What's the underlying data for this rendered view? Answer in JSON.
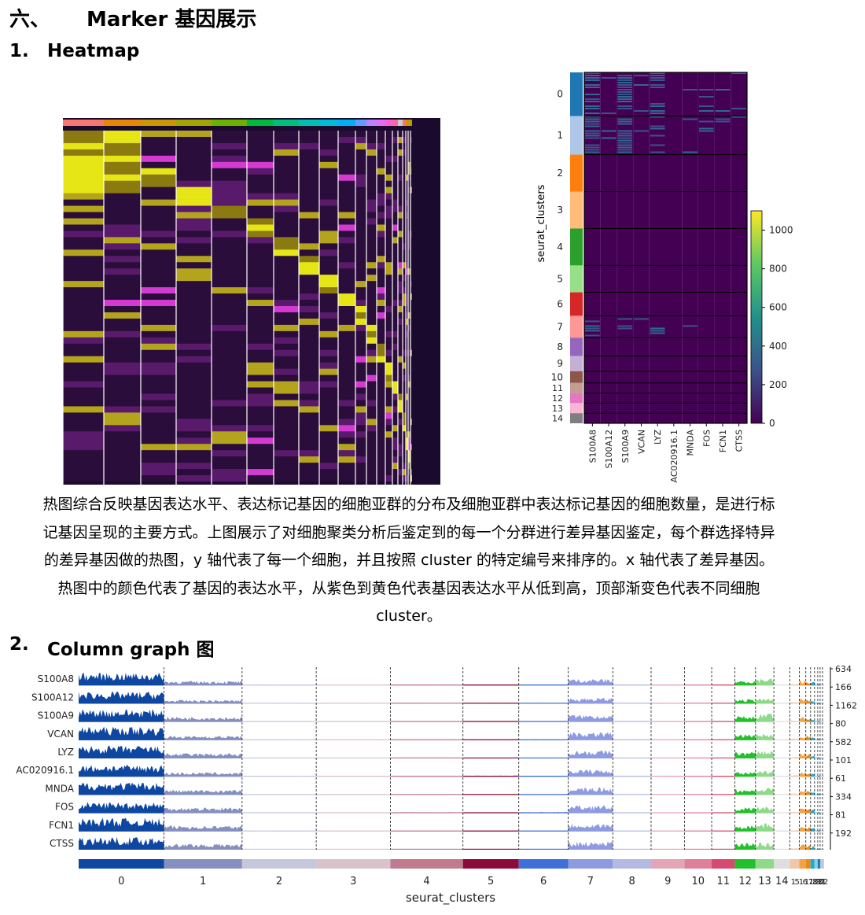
{
  "section": {
    "number": "六、",
    "title": "Marker 基因展示"
  },
  "sub1": {
    "number": "1.",
    "title": "Heatmap"
  },
  "sub2": {
    "number": "2.",
    "title": "Column graph 图"
  },
  "paragraph": [
    "热图综合反映基因表达水平、表达标记基因的细胞亚群的分布及细胞亚群中表达标记基因的细胞数量，是进行标",
    "记基因呈现的主要方式。上图展示了对细胞聚类分析后鉴定到的每一个分群进行差异基因鉴定，每个群选择特异",
    "的差异基因做的热图，y 轴代表了每一个细胞，并且按照 cluster  的特定编号来排序的。x 轴代表了差异基因。",
    "热图中的颜色代表了基因的表达水平，从紫色到黄色代表基因表达水平从低到高，顶部渐变色代表不同细胞",
    "cluster。"
  ],
  "heatmap_right": {
    "ylabel": "seurat_clusters",
    "genes": [
      "S100A8",
      "S100A12",
      "S100A9",
      "VCAN",
      "LYZ",
      "AC020916.1",
      "MNDA",
      "FOS",
      "FCN1",
      "CTSS"
    ],
    "cluster_labels": [
      "0",
      "1",
      "2",
      "3",
      "4",
      "5",
      "6",
      "7",
      "8",
      "9",
      "10",
      "11",
      "12",
      "13",
      "14"
    ],
    "colorbar_ticks": [
      "0",
      "200",
      "400",
      "600",
      "800",
      "1000"
    ],
    "colorbar_max": 1100,
    "colors": [
      "#1f77b4",
      "#aec7e8",
      "#ff7f0e",
      "#ffbb78",
      "#2ca02c",
      "#98df8a",
      "#d62728",
      "#ff9896",
      "#9467bd",
      "#c5b0d5",
      "#8c564b",
      "#c49c94",
      "#e377c2",
      "#f7b6d2",
      "#7f7f7f",
      "#c7c7c7",
      "#bcbd22",
      "#dbdb8d",
      "#17becf",
      "#9edae5"
    ]
  },
  "chart_data": [
    {
      "type": "heatmap",
      "title": "",
      "xlabel": "",
      "ylabel": "seurat_clusters",
      "x": [
        "S100A8",
        "S100A12",
        "S100A9",
        "VCAN",
        "LYZ",
        "AC020916.1",
        "MNDA",
        "FOS",
        "FCN1",
        "CTSS"
      ],
      "y": [
        "0",
        "1",
        "2",
        "3",
        "4",
        "5",
        "6",
        "7",
        "8",
        "9",
        "10",
        "11",
        "12",
        "13",
        "14"
      ],
      "colorbar": {
        "min": 0,
        "max": 1100,
        "ticks": [
          0,
          200,
          400,
          600,
          800,
          1000
        ]
      }
    },
    {
      "type": "bar",
      "title": "",
      "xlabel": "seurat_clusters",
      "genes": [
        "S100A8",
        "S100A12",
        "S100A9",
        "VCAN",
        "LYZ",
        "AC020916.1",
        "MNDA",
        "FOS",
        "FCN1",
        "CTSS"
      ],
      "gene_max": [
        "634",
        "166",
        "1162",
        "80",
        "582",
        "101",
        "61",
        "334",
        "81",
        "192"
      ],
      "clusters": [
        "0",
        "1",
        "2",
        "3",
        "4",
        "5",
        "6",
        "7",
        "8",
        "9",
        "10",
        "11",
        "12",
        "13",
        "14",
        "15",
        "16",
        "17",
        "18",
        "19",
        "20",
        "21",
        "22"
      ],
      "cluster_tick_labels": [
        "0",
        "1",
        "2",
        "3",
        "4",
        "5",
        "6",
        "7",
        "8",
        "9",
        "10",
        "11",
        "12",
        "13",
        "14",
        "15",
        "16",
        "17",
        "18",
        "19",
        "20",
        "21",
        "22"
      ],
      "cluster_colors": [
        "#0d47a1",
        "#8590c0",
        "#c5c8dc",
        "#d9c2cc",
        "#c07b8e",
        "#8b0a3a",
        "#3f6fd8",
        "#8e9be0",
        "#b5b9e2",
        "#e4a6b6",
        "#e07f98",
        "#d64a72",
        "#22c02a",
        "#8ed98a",
        "#dedede",
        "#f2c7a8",
        "#f2a34a",
        "#e88a1a",
        "#22aacc",
        "#7fd4e6",
        "#1f77b4",
        "#aec7e8",
        "#cfcfcf"
      ],
      "expression_level": {
        "S100A8": [
          0.85,
          0.3,
          0.02,
          0.02,
          0.03,
          0.02,
          0.02,
          0.45,
          0.02,
          0.02,
          0.02,
          0.02,
          0.35,
          0.5,
          0.05,
          0.1,
          0.35,
          0.3,
          0.25,
          0.1,
          0.05,
          0.05,
          0.05
        ],
        "S100A12": [
          0.8,
          0.25,
          0.02,
          0.02,
          0.02,
          0.02,
          0.02,
          0.4,
          0.02,
          0.02,
          0.02,
          0.02,
          0.3,
          0.35,
          0.05,
          0.1,
          0.3,
          0.25,
          0.2,
          0.1,
          0.05,
          0.05,
          0.05
        ],
        "S100A9": [
          0.85,
          0.35,
          0.02,
          0.02,
          0.03,
          0.02,
          0.02,
          0.5,
          0.02,
          0.02,
          0.02,
          0.02,
          0.4,
          0.55,
          0.05,
          0.1,
          0.35,
          0.3,
          0.25,
          0.1,
          0.05,
          0.05,
          0.05
        ],
        "VCAN": [
          0.9,
          0.3,
          0.02,
          0.02,
          0.03,
          0.02,
          0.03,
          0.55,
          0.02,
          0.02,
          0.02,
          0.02,
          0.4,
          0.45,
          0.05,
          0.1,
          0.3,
          0.3,
          0.2,
          0.1,
          0.05,
          0.05,
          0.05
        ],
        "LYZ": [
          0.85,
          0.35,
          0.02,
          0.03,
          0.03,
          0.03,
          0.05,
          0.55,
          0.02,
          0.03,
          0.02,
          0.02,
          0.45,
          0.55,
          0.05,
          0.1,
          0.35,
          0.3,
          0.25,
          0.1,
          0.05,
          0.05,
          0.05
        ],
        "AC020916.1": [
          0.8,
          0.3,
          0.02,
          0.03,
          0.04,
          0.08,
          0.03,
          0.5,
          0.02,
          0.02,
          0.02,
          0.02,
          0.35,
          0.45,
          0.05,
          0.1,
          0.3,
          0.25,
          0.2,
          0.1,
          0.05,
          0.05,
          0.05
        ],
        "MNDA": [
          0.85,
          0.35,
          0.02,
          0.03,
          0.04,
          0.03,
          0.04,
          0.5,
          0.02,
          0.02,
          0.02,
          0.02,
          0.4,
          0.5,
          0.05,
          0.1,
          0.35,
          0.3,
          0.25,
          0.1,
          0.05,
          0.05,
          0.05
        ],
        "FOS": [
          0.75,
          0.4,
          0.05,
          0.05,
          0.08,
          0.06,
          0.08,
          0.55,
          0.05,
          0.05,
          0.04,
          0.04,
          0.4,
          0.45,
          0.05,
          0.1,
          0.35,
          0.3,
          0.25,
          0.1,
          0.05,
          0.05,
          0.05
        ],
        "FCN1": [
          0.9,
          0.4,
          0.02,
          0.03,
          0.04,
          0.05,
          0.04,
          0.55,
          0.02,
          0.02,
          0.02,
          0.02,
          0.45,
          0.55,
          0.05,
          0.1,
          0.35,
          0.3,
          0.25,
          0.1,
          0.05,
          0.05,
          0.05
        ],
        "CTSS": [
          0.85,
          0.4,
          0.03,
          0.04,
          0.05,
          0.04,
          0.05,
          0.55,
          0.03,
          0.03,
          0.03,
          0.03,
          0.45,
          0.5,
          0.05,
          0.1,
          0.35,
          0.3,
          0.25,
          0.1,
          0.05,
          0.05,
          0.05
        ]
      }
    }
  ]
}
